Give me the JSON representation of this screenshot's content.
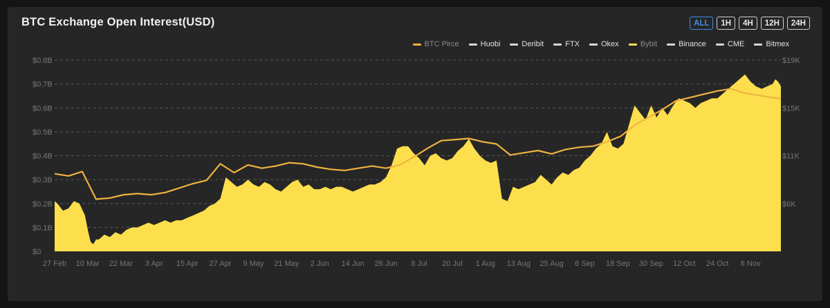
{
  "title": "BTC Exchange Open Interest(USD)",
  "range_buttons": [
    {
      "label": "ALL",
      "active": true
    },
    {
      "label": "1H",
      "active": false
    },
    {
      "label": "4H",
      "active": false
    },
    {
      "label": "12H",
      "active": false
    },
    {
      "label": "24H",
      "active": false
    }
  ],
  "legend": [
    {
      "label": "BTC Pirce",
      "color": "#f0b340",
      "muted": true
    },
    {
      "label": "Huobi",
      "color": "#d8d8d8",
      "muted": false
    },
    {
      "label": "Deribit",
      "color": "#d8d8d8",
      "muted": false
    },
    {
      "label": "FTX",
      "color": "#d8d8d8",
      "muted": false
    },
    {
      "label": "Okex",
      "color": "#d8d8d8",
      "muted": false
    },
    {
      "label": "Bybit",
      "color": "#fddf4d",
      "muted": true
    },
    {
      "label": "Binance",
      "color": "#d8d8d8",
      "muted": false
    },
    {
      "label": "CME",
      "color": "#d8d8d8",
      "muted": false
    },
    {
      "label": "Bitmex",
      "color": "#d8d8d8",
      "muted": false
    }
  ],
  "colors": {
    "area": "#fddf4d",
    "price_line": "#f0b340",
    "grid": "#5a5a5a"
  },
  "chart_data": {
    "type": "area",
    "x_ticks": [
      "27 Feb",
      "10 Mar",
      "22 Mar",
      "3 Apr",
      "15 Apr",
      "27 Apr",
      "9 May",
      "21 May",
      "2 Jun",
      "14 Jun",
      "26 Jun",
      "8 Jul",
      "20 Jul",
      "1 Aug",
      "13 Aug",
      "25 Aug",
      "6 Sep",
      "18 Sep",
      "30 Sep",
      "12 Oct",
      "24 Oct",
      "6 Nov"
    ],
    "y_left": {
      "ticks": [
        "$0",
        "$0.1B",
        "$0.2B",
        "$0.3B",
        "$0.4B",
        "$0.5B",
        "$0.6B",
        "$0.7B",
        "$0.8B"
      ],
      "range": [
        0,
        0.8
      ]
    },
    "y_right": {
      "ticks": [
        "$6K",
        "$11K",
        "$15K",
        "$19K"
      ]
    },
    "grid": true,
    "legend_position": "top-right",
    "series": [
      {
        "name": "Bybit",
        "x": [
          0,
          1,
          3,
          5,
          7,
          9,
          11,
          12,
          13,
          14,
          15,
          16,
          18,
          20,
          22,
          24,
          26,
          28,
          30,
          32,
          34,
          36,
          38,
          40,
          42,
          44,
          46,
          48,
          50,
          52,
          54,
          56,
          58,
          60,
          62,
          64,
          66,
          68,
          70,
          72,
          74,
          76,
          78,
          80,
          82,
          84,
          86,
          88,
          90,
          92,
          94,
          96,
          98,
          100,
          102,
          104,
          106,
          108,
          110,
          112,
          114,
          116,
          118,
          120,
          122,
          124,
          126,
          128,
          130,
          132,
          134,
          136,
          138,
          140,
          142,
          144,
          146,
          148,
          150,
          152,
          154,
          156,
          158,
          160,
          162,
          164,
          166,
          168,
          170,
          172,
          174,
          176,
          178,
          180,
          182,
          184,
          186,
          188,
          190,
          192,
          194,
          196,
          198,
          200,
          202,
          204,
          206,
          208,
          210,
          212,
          214,
          216,
          218,
          220,
          222,
          224,
          226,
          228,
          230,
          232,
          234,
          236,
          238,
          240,
          242,
          244,
          246,
          248,
          250,
          252,
          254,
          256,
          258,
          260,
          261,
          262,
          263
        ],
        "values": [
          0.21,
          0.2,
          0.17,
          0.18,
          0.21,
          0.2,
          0.15,
          0.09,
          0.04,
          0.03,
          0.05,
          0.05,
          0.07,
          0.06,
          0.08,
          0.07,
          0.09,
          0.1,
          0.1,
          0.11,
          0.12,
          0.11,
          0.12,
          0.13,
          0.12,
          0.13,
          0.13,
          0.14,
          0.15,
          0.16,
          0.17,
          0.19,
          0.2,
          0.22,
          0.31,
          0.29,
          0.27,
          0.28,
          0.3,
          0.28,
          0.27,
          0.29,
          0.28,
          0.26,
          0.25,
          0.27,
          0.29,
          0.3,
          0.27,
          0.28,
          0.26,
          0.26,
          0.27,
          0.26,
          0.27,
          0.27,
          0.26,
          0.25,
          0.26,
          0.27,
          0.28,
          0.28,
          0.29,
          0.31,
          0.36,
          0.43,
          0.44,
          0.44,
          0.41,
          0.39,
          0.36,
          0.4,
          0.41,
          0.39,
          0.38,
          0.39,
          0.42,
          0.44,
          0.47,
          0.43,
          0.4,
          0.38,
          0.37,
          0.38,
          0.22,
          0.21,
          0.27,
          0.26,
          0.27,
          0.28,
          0.29,
          0.32,
          0.3,
          0.28,
          0.31,
          0.33,
          0.32,
          0.34,
          0.35,
          0.38,
          0.4,
          0.43,
          0.45,
          0.5,
          0.44,
          0.43,
          0.45,
          0.53,
          0.61,
          0.58,
          0.55,
          0.61,
          0.56,
          0.6,
          0.57,
          0.61,
          0.64,
          0.63,
          0.62,
          0.6,
          0.62,
          0.63,
          0.64,
          0.64,
          0.66,
          0.68,
          0.7,
          0.72,
          0.74,
          0.71,
          0.69,
          0.68,
          0.69,
          0.7,
          0.72,
          0.71,
          0.69
        ]
      },
      {
        "name": "BTC Pirce",
        "axis": "right",
        "x": [
          0,
          5,
          10,
          15,
          20,
          25,
          30,
          35,
          40,
          45,
          50,
          55,
          60,
          65,
          70,
          75,
          80,
          85,
          90,
          95,
          100,
          105,
          110,
          115,
          120,
          125,
          130,
          135,
          140,
          145,
          150,
          155,
          160,
          165,
          170,
          175,
          180,
          185,
          190,
          195,
          200,
          205,
          210,
          215,
          220,
          225,
          230,
          235,
          240,
          245,
          250,
          255,
          260,
          263
        ],
        "values": [
          8.7,
          8.5,
          8.9,
          6.4,
          6.5,
          6.8,
          6.9,
          6.8,
          7.0,
          7.4,
          7.8,
          8.1,
          9.6,
          8.8,
          9.5,
          9.2,
          9.4,
          9.7,
          9.6,
          9.3,
          9.1,
          9.0,
          9.2,
          9.4,
          9.2,
          9.5,
          10.2,
          11.0,
          11.7,
          11.8,
          11.9,
          11.6,
          11.4,
          10.4,
          10.6,
          10.8,
          10.5,
          10.9,
          11.1,
          11.2,
          11.6,
          12.1,
          13.1,
          13.8,
          14.5,
          15.3,
          15.6,
          15.9,
          16.2,
          16.4,
          16.0,
          15.8,
          15.6,
          15.5
        ]
      }
    ]
  }
}
